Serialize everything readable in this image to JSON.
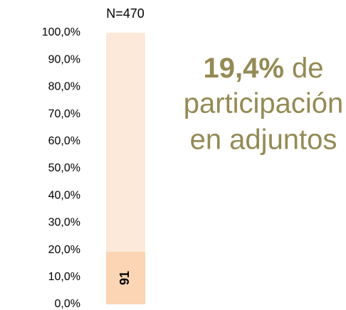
{
  "chart_data": {
    "type": "bar",
    "stacking": "percent",
    "title": "N=470",
    "categories": [
      null
    ],
    "series": [
      {
        "name": null,
        "color": "#fcd5b4",
        "values": [
          91
        ],
        "value_labels": [
          "91"
        ]
      },
      {
        "name": null,
        "color": "#fde9d9",
        "values": [
          379
        ]
      }
    ],
    "ylim": [
      0,
      100
    ],
    "yticks": [
      {
        "value": 0,
        "label": "0,0%"
      },
      {
        "value": 10,
        "label": "10,0%"
      },
      {
        "value": 20,
        "label": "20,0%"
      },
      {
        "value": 30,
        "label": "30,0%"
      },
      {
        "value": 40,
        "label": "40,0%"
      },
      {
        "value": 50,
        "label": "50,0%"
      },
      {
        "value": 60,
        "label": "60,0%"
      },
      {
        "value": 70,
        "label": "70,0%"
      },
      {
        "value": 80,
        "label": "80,0%"
      },
      {
        "value": 90,
        "label": "90,0%"
      },
      {
        "value": 100,
        "label": "100,0%"
      }
    ],
    "grid": false,
    "annotation": {
      "highlight": "19,4%",
      "lines": [
        "de",
        "participación",
        "en adjuntos"
      ]
    }
  }
}
